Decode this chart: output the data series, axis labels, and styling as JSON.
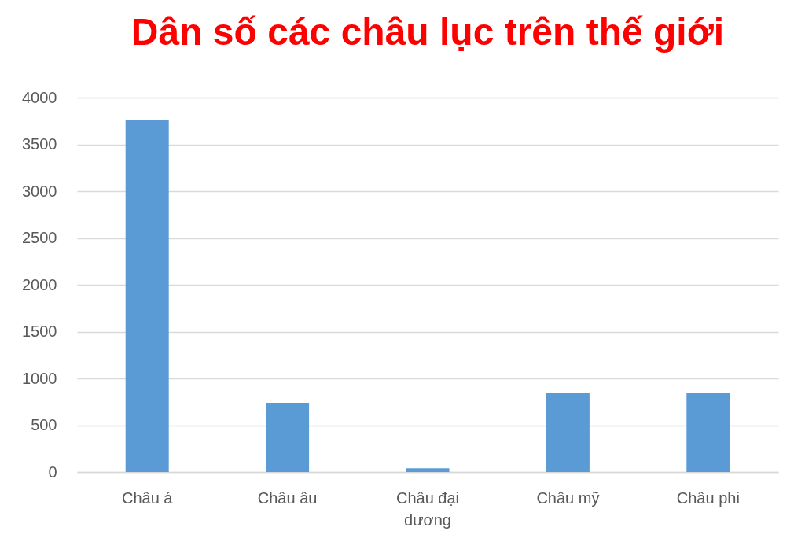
{
  "chart_data": {
    "type": "bar",
    "title": "Dân số các châu lục trên thế giới",
    "categories": [
      "Châu á",
      "Châu âu",
      "Châu đại dương",
      "Châu mỹ",
      "Châu phi"
    ],
    "values": [
      3760,
      740,
      40,
      840,
      840
    ],
    "color": "#5b9bd5",
    "ylim": [
      0,
      4000
    ],
    "yticks": [
      0,
      500,
      1000,
      1500,
      2000,
      2500,
      3000,
      3500,
      4000
    ],
    "grid": "y"
  }
}
